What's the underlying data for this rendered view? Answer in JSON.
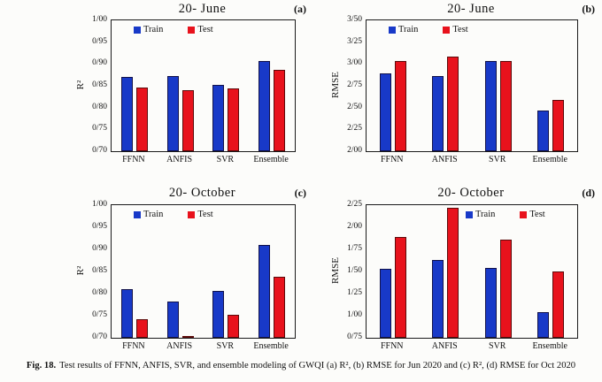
{
  "page": {
    "background": "#fcfcfa"
  },
  "legend": {
    "train_label": "Train",
    "test_label": "Test"
  },
  "colors": {
    "train": "#1839c8",
    "test": "#e8121c",
    "axis": "#1a1a1a"
  },
  "caption": {
    "prefix": "Fig. 18.",
    "text": "Test results of FFNN, ANFIS, SVR, and ensemble modeling of GWQI (a) R², (b) RMSE for Jun 2020 and (c) R², (d) RMSE for Oct 2020"
  },
  "chart_data": [
    {
      "id": "a",
      "type": "bar",
      "title": "20- June",
      "panel_label": "(a)",
      "ylabel": "R²",
      "xlabel": "",
      "ymin": 0.7,
      "ymax": 1.0,
      "grid": false,
      "legend_position": "top-left",
      "yticks": [
        {
          "value": 1.0,
          "label": "1/00"
        },
        {
          "value": 0.95,
          "label": "0/95"
        },
        {
          "value": 0.9,
          "label": "0/90"
        },
        {
          "value": 0.85,
          "label": "0/85"
        },
        {
          "value": 0.8,
          "label": "0/80"
        },
        {
          "value": 0.75,
          "label": "0/75"
        },
        {
          "value": 0.7,
          "label": "0/70"
        }
      ],
      "categories": [
        "FFNN",
        "ANFIS",
        "SVR",
        "Ensemble"
      ],
      "series": [
        {
          "name": "Train",
          "color_key": "train",
          "values": [
            0.87,
            0.873,
            0.853,
            0.906
          ]
        },
        {
          "name": "Test",
          "color_key": "test",
          "values": [
            0.845,
            0.839,
            0.844,
            0.886
          ]
        }
      ]
    },
    {
      "id": "b",
      "type": "bar",
      "title": "20- June",
      "panel_label": "(b)",
      "ylabel": "RMSE",
      "xlabel": "",
      "ymin": 2.0,
      "ymax": 3.5,
      "grid": false,
      "legend_position": "top-left",
      "yticks": [
        {
          "value": 3.5,
          "label": "3/50"
        },
        {
          "value": 3.25,
          "label": "3/25"
        },
        {
          "value": 3.0,
          "label": "3/00"
        },
        {
          "value": 2.75,
          "label": "2/75"
        },
        {
          "value": 2.5,
          "label": "2/50"
        },
        {
          "value": 2.25,
          "label": "2/25"
        },
        {
          "value": 2.0,
          "label": "2/00"
        }
      ],
      "categories": [
        "FFNN",
        "ANFIS",
        "SVR",
        "Ensemble"
      ],
      "series": [
        {
          "name": "Train",
          "color_key": "train",
          "values": [
            2.89,
            2.86,
            3.03,
            2.47
          ]
        },
        {
          "name": "Test",
          "color_key": "test",
          "values": [
            3.03,
            3.08,
            3.03,
            2.59
          ]
        }
      ]
    },
    {
      "id": "c",
      "type": "bar",
      "title": "20- October",
      "panel_label": "(c)",
      "ylabel": "R²",
      "xlabel": "",
      "ymin": 0.7,
      "ymax": 1.0,
      "grid": false,
      "legend_position": "top-left",
      "yticks": [
        {
          "value": 1.0,
          "label": "1/00"
        },
        {
          "value": 0.95,
          "label": "0/95"
        },
        {
          "value": 0.9,
          "label": "0/90"
        },
        {
          "value": 0.85,
          "label": "0/85"
        },
        {
          "value": 0.8,
          "label": "0/80"
        },
        {
          "value": 0.75,
          "label": "0/75"
        },
        {
          "value": 0.7,
          "label": "0/70"
        }
      ],
      "categories": [
        "FFNN",
        "ANFIS",
        "SVR",
        "Ensemble"
      ],
      "series": [
        {
          "name": "Train",
          "color_key": "train",
          "values": [
            0.81,
            0.783,
            0.807,
            0.91
          ]
        },
        {
          "name": "Test",
          "color_key": "test",
          "values": [
            0.742,
            0.701,
            0.752,
            0.839
          ]
        }
      ]
    },
    {
      "id": "d",
      "type": "bar",
      "title": "20- October",
      "panel_label": "(d)",
      "ylabel": "RMSE",
      "xlabel": "",
      "ymin": 0.75,
      "ymax": 2.25,
      "grid": false,
      "legend_position": "top-right",
      "yticks": [
        {
          "value": 2.25,
          "label": "2/25"
        },
        {
          "value": 2.0,
          "label": "2/00"
        },
        {
          "value": 1.75,
          "label": "1/75"
        },
        {
          "value": 1.5,
          "label": "1/50"
        },
        {
          "value": 1.25,
          "label": "1/25"
        },
        {
          "value": 1.0,
          "label": "1/00"
        },
        {
          "value": 0.75,
          "label": "0/75"
        }
      ],
      "categories": [
        "FFNN",
        "ANFIS",
        "SVR",
        "Ensemble"
      ],
      "series": [
        {
          "name": "Train",
          "color_key": "train",
          "values": [
            1.53,
            1.63,
            1.54,
            1.04
          ]
        },
        {
          "name": "Test",
          "color_key": "test",
          "values": [
            1.89,
            2.22,
            1.86,
            1.5
          ]
        }
      ]
    }
  ]
}
